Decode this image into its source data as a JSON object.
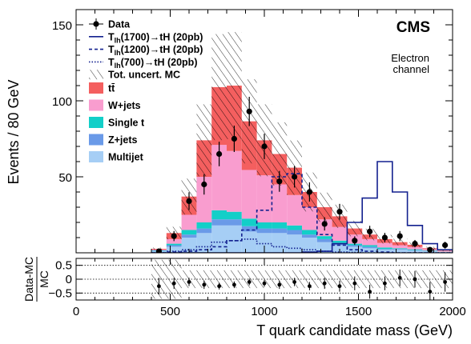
{
  "chart_data": [
    {
      "type": "bar",
      "panel": "main",
      "ylabel": "Events / 80 GeV",
      "ylim": [
        0,
        160
      ],
      "yticks": [
        50,
        100,
        150
      ],
      "xlim": [
        0,
        2000
      ],
      "xticks": [
        0,
        500,
        1000,
        1500,
        2000
      ],
      "x_edges": [
        400,
        480,
        560,
        640,
        720,
        800,
        880,
        960,
        1040,
        1120,
        1200,
        1280,
        1360,
        1440,
        1520,
        1600,
        1680,
        1760,
        1840,
        1920,
        2000
      ],
      "annotation_main": "CMS",
      "annotation_channel_line1": "Electron",
      "annotation_channel_line2": "channel",
      "stack": [
        {
          "key": "multijet",
          "name": "Multijet",
          "color": "#a6cef5",
          "values": [
            1,
            4,
            10,
            13,
            18,
            18,
            14,
            13,
            13,
            12,
            10,
            7,
            5,
            4,
            3,
            2,
            2,
            1.5,
            1,
            0.5
          ]
        },
        {
          "key": "zjets",
          "name": "Z+jets",
          "color": "#6a9ae8",
          "values": [
            0.3,
            1,
            2,
            3,
            4,
            4,
            3.5,
            3,
            3,
            3,
            2,
            2,
            1.5,
            1,
            1,
            0.5,
            0.5,
            0.3,
            0.2,
            0.1
          ]
        },
        {
          "key": "singlet",
          "name": "Single t",
          "color": "#13cfc8",
          "values": [
            0.3,
            1,
            3,
            4,
            6,
            5,
            5,
            4,
            4,
            3,
            3,
            2,
            1.5,
            1,
            1,
            1,
            0.5,
            0.5,
            0.3,
            0.1
          ]
        },
        {
          "key": "wjets",
          "name": "W+jets",
          "color": "#f99dcf",
          "values": [
            0.5,
            3,
            10,
            30,
            43,
            40,
            32,
            31,
            25,
            20,
            15,
            11,
            9,
            6,
            4,
            3,
            2,
            1.5,
            1,
            0.5
          ]
        },
        {
          "key": "ttbar",
          "name": "tt̄",
          "color": "#f45f5f",
          "values": [
            0.5,
            4,
            12,
            24,
            38,
            43,
            32,
            23,
            20,
            18,
            10,
            8,
            7,
            4,
            3,
            2.5,
            2,
            1.5,
            0.5,
            0.3
          ]
        }
      ],
      "uncertainty": {
        "name": "Tot. uncert. MC",
        "rel": 0.32
      },
      "data": {
        "name": "Data",
        "x": [
          440,
          520,
          600,
          680,
          760,
          840,
          920,
          1000,
          1080,
          1160,
          1240,
          1320,
          1400,
          1480,
          1560,
          1640,
          1720,
          1800,
          1880,
          1960
        ],
        "y": [
          1,
          11,
          34,
          45,
          65,
          75,
          93,
          70,
          47,
          50,
          40,
          19,
          27,
          8,
          14,
          10,
          11,
          6,
          2,
          5
        ]
      },
      "signals": [
        {
          "name_prefix": "T",
          "name_sub": "lh",
          "name_suffix": "(1700)→tH (20pb)",
          "style": "solid",
          "color": "#13218f",
          "values": [
            0,
            0,
            0,
            0,
            0,
            0,
            0,
            0,
            0,
            0,
            0.5,
            1,
            6,
            20,
            36,
            60,
            40,
            18,
            6,
            2
          ]
        },
        {
          "name_prefix": "T",
          "name_sub": "lh",
          "name_suffix": "(1200)→tH (20pb)",
          "style": "dashed",
          "color": "#13218f",
          "values": [
            0,
            0.5,
            1,
            2,
            4,
            8,
            15,
            28,
            50,
            52,
            30,
            12,
            5,
            2,
            1,
            0.5,
            0,
            0,
            0,
            0
          ]
        },
        {
          "name_prefix": "T",
          "name_sub": "lh",
          "name_suffix": "(700)→tH (20pb)",
          "style": "dotted",
          "color": "#13218f",
          "values": [
            0,
            1,
            2,
            4,
            7,
            8,
            9,
            6,
            4,
            3,
            2,
            1,
            0.5,
            0.3,
            0,
            0,
            0,
            0,
            0,
            0
          ]
        }
      ]
    },
    {
      "type": "scatter",
      "panel": "ratio",
      "ylabel_num": "Data-MC",
      "ylabel_den": "MC",
      "xlabel": "T quark candidate mass (GeV)",
      "ylim": [
        -0.75,
        0.75
      ],
      "yticks": [
        0.5,
        0,
        -0.5
      ],
      "ytick_labels": [
        "0.5",
        "0",
        "−0.5"
      ],
      "x": [
        440,
        520,
        600,
        680,
        760,
        840,
        920,
        1000,
        1080,
        1160,
        1240,
        1320,
        1400,
        1480,
        1560,
        1640,
        1720,
        1800,
        1880,
        1960
      ],
      "y": [
        -0.25,
        -0.15,
        -0.1,
        -0.2,
        -0.25,
        -0.2,
        -0.1,
        -0.15,
        -0.2,
        -0.1,
        -0.25,
        -0.15,
        -0.25,
        -0.15,
        -0.45,
        -0.15,
        0.05,
        0.0,
        -0.45,
        -0.1
      ],
      "err": [
        0.3,
        0.2,
        0.15,
        0.15,
        0.12,
        0.12,
        0.12,
        0.12,
        0.15,
        0.15,
        0.15,
        0.2,
        0.2,
        0.25,
        0.25,
        0.25,
        0.3,
        0.3,
        0.35,
        0.35
      ]
    }
  ]
}
